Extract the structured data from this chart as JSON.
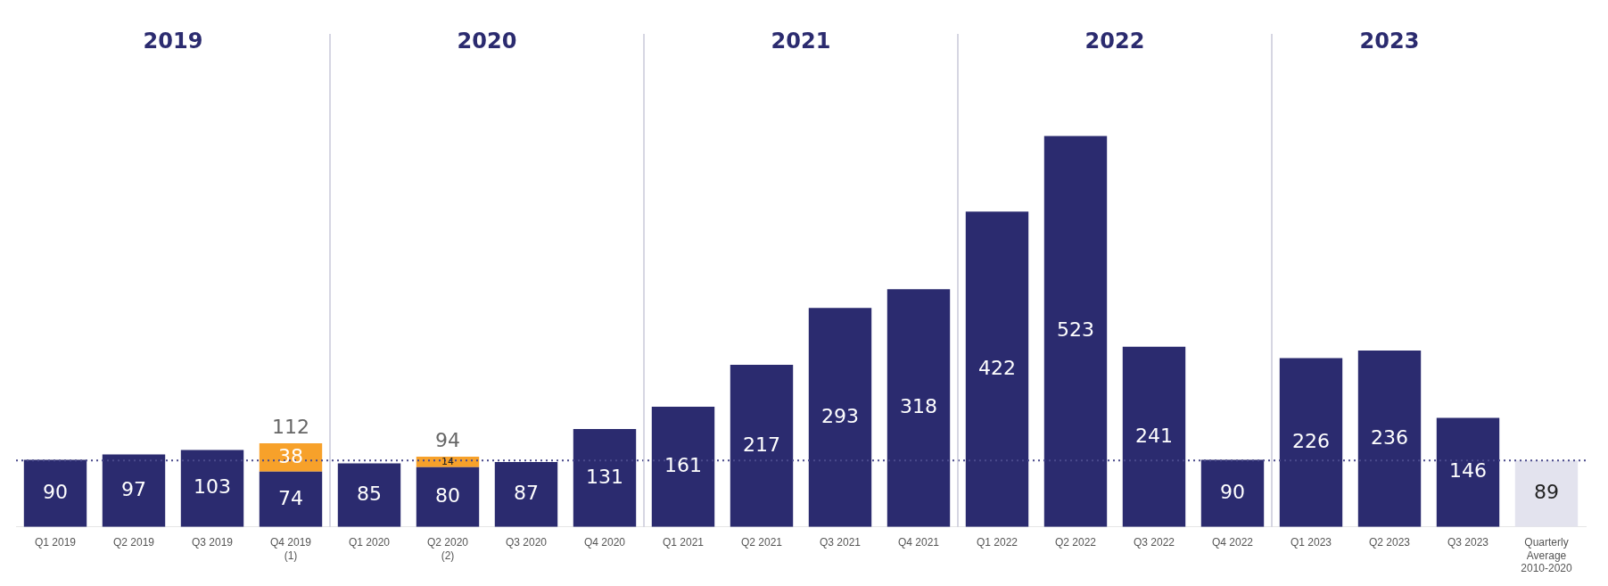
{
  "chart_data": {
    "type": "bar",
    "stacked": true,
    "data_labels": true,
    "legend": false,
    "grid": false,
    "categories": [
      "Q1 2019",
      "Q2 2019",
      "Q3 2019",
      "Q4 2019 (1)",
      "Q1 2020",
      "Q2 2020 (2)",
      "Q3 2020",
      "Q4 2020",
      "Q1 2021",
      "Q2 2021",
      "Q3 2021",
      "Q4 2021",
      "Q1 2022",
      "Q2 2022",
      "Q3 2022",
      "Q4 2022",
      "Q1 2023",
      "Q2 2023",
      "Q3 2023",
      "Quarterly Average 2010-2020"
    ],
    "series": [
      {
        "color": "#2b2b6f",
        "values": [
          90,
          97,
          103,
          74,
          85,
          80,
          87,
          131,
          161,
          217,
          293,
          318,
          422,
          523,
          241,
          90,
          226,
          236,
          146,
          null
        ]
      },
      {
        "color": "#f7a12a",
        "values": [
          null,
          null,
          null,
          38,
          null,
          14,
          null,
          null,
          null,
          null,
          null,
          null,
          null,
          null,
          null,
          null,
          null,
          null,
          null,
          null
        ]
      },
      {
        "color": "#e3e3ee",
        "values": [
          null,
          null,
          null,
          null,
          null,
          null,
          null,
          null,
          null,
          null,
          null,
          null,
          null,
          null,
          null,
          null,
          null,
          null,
          null,
          89
        ]
      }
    ],
    "totals": [
      null,
      null,
      null,
      "112",
      null,
      "94",
      null,
      null,
      null,
      null,
      null,
      null,
      null,
      null,
      null,
      null,
      null,
      null,
      null,
      null
    ],
    "ref_lines": [
      {
        "axis": "y",
        "value": 89,
        "color": "#4a4a8c",
        "line_style": "dotted"
      }
    ],
    "annotations": [
      "2019",
      "2020",
      "2021",
      "2022",
      "2023"
    ]
  }
}
